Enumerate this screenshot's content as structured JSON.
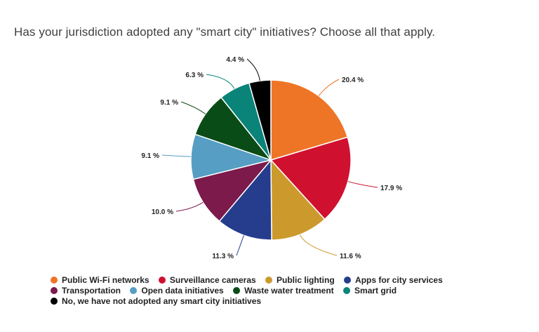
{
  "chart_data": {
    "type": "pie",
    "title": "Has your jurisdiction adopted any \"smart city\" initiatives?  Choose all that apply.",
    "categories": [
      "Public Wi-Fi networks",
      "Surveillance cameras",
      "Public lighting",
      "Apps for city services",
      "Transportation",
      "Open data initiatives",
      "Waste water treatment",
      "Smart grid",
      "No, we have not adopted any smart city initiatives"
    ],
    "values": [
      20.4,
      17.9,
      11.6,
      11.3,
      10.0,
      9.1,
      9.1,
      6.3,
      4.4
    ],
    "value_labels": [
      "20.4 %",
      "17.9 %",
      "11.6 %",
      "11.3 %",
      "10.0 %",
      "9.1 %",
      "9.1 %",
      "6.3 %",
      "4.4 %"
    ],
    "colors": [
      "#ee7426",
      "#d0102f",
      "#cc9a2c",
      "#253d8c",
      "#7b1a4b",
      "#569ec3",
      "#0a4c17",
      "#0a8379",
      "#000000"
    ],
    "legend_position": "bottom"
  }
}
